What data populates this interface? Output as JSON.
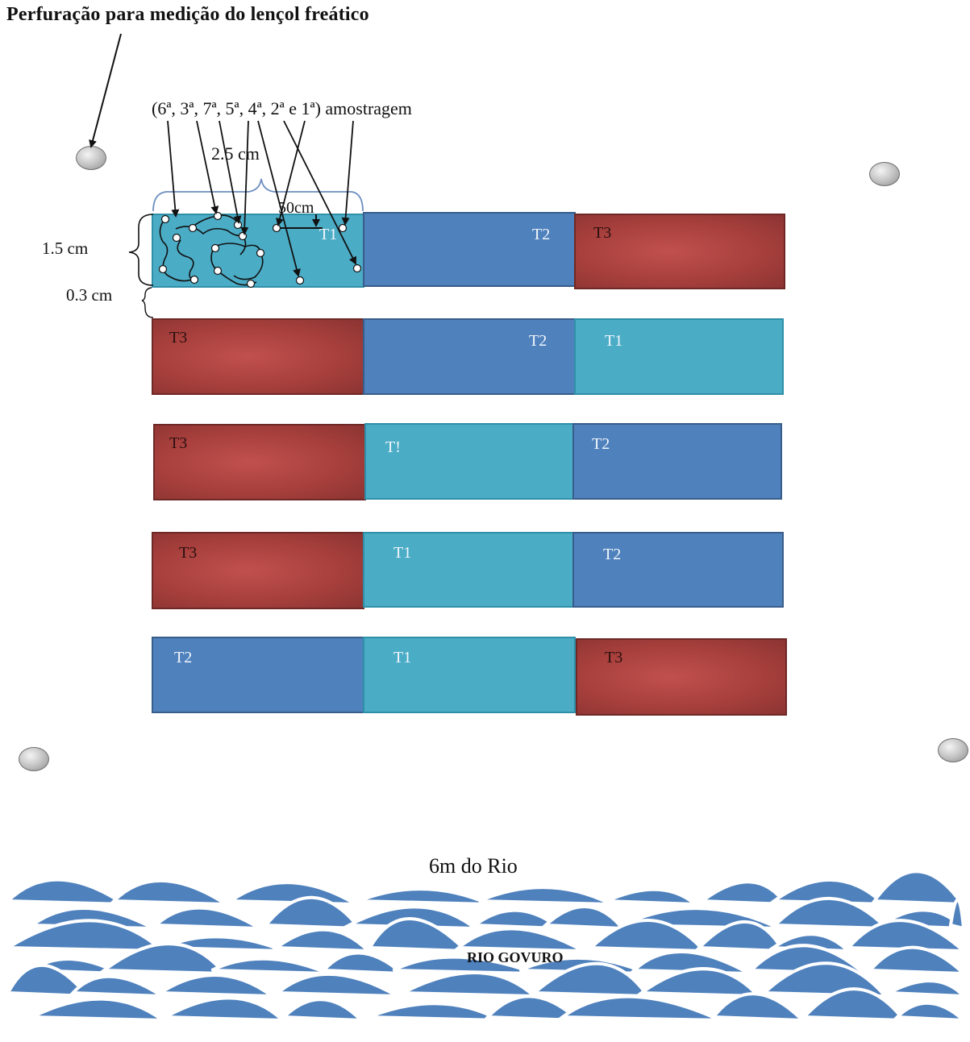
{
  "title": "Perfuração para medição do lençol freático",
  "sampling_label": "(6ª, 3ª, 7ª, 5ª, 4ª, 2ª e 1ª) amostragem",
  "dimensions": {
    "width_label": "2.5 cm",
    "spacing_label": "50cm",
    "height_label": "1.5 cm",
    "gap_label": "0.3 cm"
  },
  "distance_label": "6m do Rio",
  "river_label": "RIO GOVURO",
  "rows": [
    {
      "plots": [
        {
          "treatment": "t1",
          "label": "T1"
        },
        {
          "treatment": "t2",
          "label": "T2"
        },
        {
          "treatment": "t3",
          "label": "T3"
        }
      ]
    },
    {
      "plots": [
        {
          "treatment": "t3",
          "label": "T3"
        },
        {
          "treatment": "t2",
          "label": "T2"
        },
        {
          "treatment": "t1",
          "label": "T1"
        }
      ]
    },
    {
      "plots": [
        {
          "treatment": "t3",
          "label": "T3"
        },
        {
          "treatment": "t1",
          "label": "T!"
        },
        {
          "treatment": "t2",
          "label": "T2"
        }
      ]
    },
    {
      "plots": [
        {
          "treatment": "t3",
          "label": "T3"
        },
        {
          "treatment": "t1",
          "label": "T1"
        },
        {
          "treatment": "t2",
          "label": "T2"
        }
      ]
    },
    {
      "plots": [
        {
          "treatment": "t2",
          "label": "T2"
        },
        {
          "treatment": "t1",
          "label": "T1"
        },
        {
          "treatment": "t3",
          "label": "T3"
        }
      ]
    }
  ],
  "colors": {
    "t1": "#4bacc6",
    "t2": "#4f81bd",
    "t3": "#c0504d",
    "river": "#4f81bd"
  },
  "wells": [
    "well-icon",
    "well-icon",
    "well-icon",
    "well-icon"
  ]
}
